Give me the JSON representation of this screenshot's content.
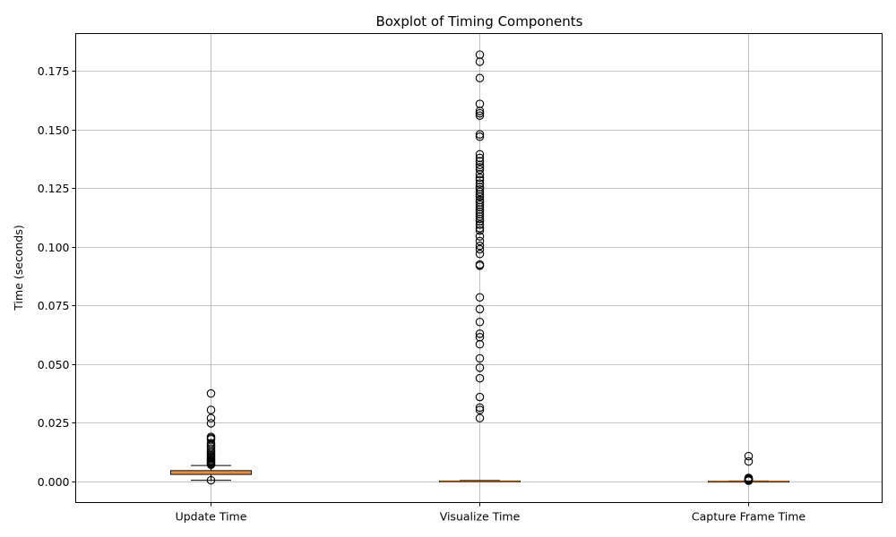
{
  "chart_data": {
    "type": "boxplot",
    "title": "Boxplot of Timing Components",
    "xlabel": "",
    "ylabel": "Time (seconds)",
    "ylim": [
      -0.009,
      0.191
    ],
    "yticks": [
      "0.000",
      "0.025",
      "0.050",
      "0.075",
      "0.100",
      "0.125",
      "0.150",
      "0.175"
    ],
    "grid": true,
    "box_color": "#f4a96a",
    "median_color": "#e07b1a",
    "categories": [
      "Update Time",
      "Visualize Time",
      "Capture Frame Time"
    ],
    "series": [
      {
        "whisker_low": 0.0005,
        "q1": 0.003,
        "median": 0.0038,
        "q3": 0.0046,
        "whisker_high": 0.0068,
        "outliers": [
          0.0375,
          0.0305,
          0.027,
          0.0248,
          0.019,
          0.0185,
          0.018,
          0.0163,
          0.0155,
          0.0148,
          0.014,
          0.0132,
          0.0125,
          0.0118,
          0.0112,
          0.0106,
          0.0101,
          0.0096,
          0.0091,
          0.0086,
          0.0082,
          0.0078,
          0.0074,
          0.0071,
          0.0005
        ]
      },
      {
        "whisker_low": 0.0,
        "q1": 0.0,
        "median": 0.0,
        "q3": 0.0002,
        "whisker_high": 0.0004,
        "outliers": [
          0.182,
          0.179,
          0.172,
          0.161,
          0.158,
          0.157,
          0.156,
          0.148,
          0.147,
          0.1395,
          0.138,
          0.1365,
          0.135,
          0.134,
          0.133,
          0.131,
          0.1295,
          0.1285,
          0.127,
          0.1255,
          0.1245,
          0.1235,
          0.1225,
          0.1215,
          0.12,
          0.119,
          0.118,
          0.117,
          0.116,
          0.115,
          0.114,
          0.113,
          0.112,
          0.111,
          0.1095,
          0.108,
          0.107,
          0.1045,
          0.1025,
          0.1005,
          0.099,
          0.097,
          0.0925,
          0.092,
          0.0785,
          0.0735,
          0.068,
          0.063,
          0.0615,
          0.0585,
          0.0525,
          0.0485,
          0.044,
          0.036,
          0.0315,
          0.0305,
          0.027
        ]
      },
      {
        "whisker_low": 0.0,
        "q1": 0.0,
        "median": 0.0,
        "q3": 0.0001,
        "whisker_high": 0.0002,
        "outliers": [
          0.0108,
          0.0085,
          0.0015,
          0.0013,
          0.0011,
          0.0009,
          0.0007,
          0.0005,
          0.0003
        ]
      }
    ]
  }
}
